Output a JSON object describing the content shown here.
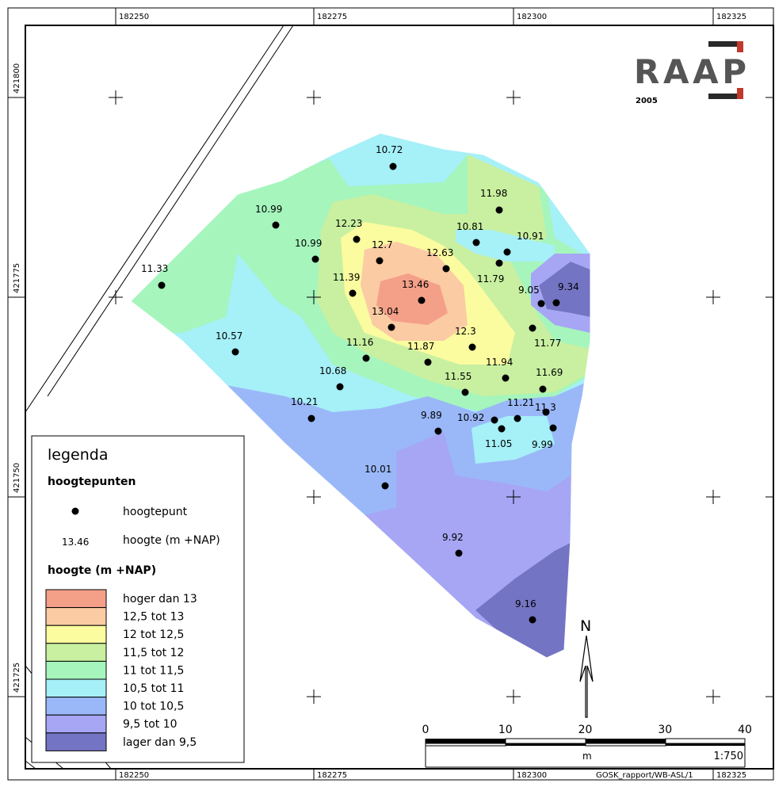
{
  "map": {
    "grid_top": [
      "182250",
      "182275",
      "182300",
      "182325"
    ],
    "grid_bottom": [
      "182250",
      "182275",
      "182300",
      "182325"
    ],
    "grid_left": [
      "421800",
      "421775",
      "421750",
      "421725"
    ],
    "reference": "GOSK_rapport/WB-ASL/1"
  },
  "logo": {
    "text": "RAAP",
    "year": "2005",
    "colors": {
      "dark": "#2a2a2a",
      "red": "#c0392b",
      "gray": "#555555"
    }
  },
  "points": [
    {
      "label": "10.72"
    },
    {
      "label": "11.98"
    },
    {
      "label": "10.99"
    },
    {
      "label": "12.23"
    },
    {
      "label": "10.81"
    },
    {
      "label": "10.91"
    },
    {
      "label": "10.99"
    },
    {
      "label": "12.7"
    },
    {
      "label": "12.63"
    },
    {
      "label": "11.33"
    },
    {
      "label": "11.79"
    },
    {
      "label": "11.39"
    },
    {
      "label": "13.46"
    },
    {
      "label": "9.05"
    },
    {
      "label": "9.34"
    },
    {
      "label": "13.04"
    },
    {
      "label": "10.57"
    },
    {
      "label": "11.77"
    },
    {
      "label": "11.16"
    },
    {
      "label": "11.87"
    },
    {
      "label": "12.3"
    },
    {
      "label": "11.94"
    },
    {
      "label": "11.69"
    },
    {
      "label": "10.68"
    },
    {
      "label": "11.55"
    },
    {
      "label": "10.21"
    },
    {
      "label": "11.21"
    },
    {
      "label": "11.3"
    },
    {
      "label": "9.89"
    },
    {
      "label": "10.92"
    },
    {
      "label": "9.99"
    },
    {
      "label": "11.05"
    },
    {
      "label": "10.01"
    },
    {
      "label": "9.92"
    },
    {
      "label": "9.16"
    }
  ],
  "legend": {
    "title": "legenda",
    "section_points": "hoogtepunten",
    "point_label": "hoogtepunt",
    "height_sample": "13.46",
    "height_label": "hoogte (m +NAP)",
    "section_classes": "hoogte (m +NAP)",
    "classes": [
      {
        "label": "hoger dan 13",
        "color": "#f4a089"
      },
      {
        "label": "12,5 tot 13",
        "color": "#fbcba4"
      },
      {
        "label": "12 tot 12,5",
        "color": "#fbfb9f"
      },
      {
        "label": "11,5 tot 12",
        "color": "#c8f0a0"
      },
      {
        "label": "11 tot 11,5",
        "color": "#a5f5bd"
      },
      {
        "label": "10,5 tot 11",
        "color": "#a6f0f8"
      },
      {
        "label": "10 tot 10,5",
        "color": "#9ab8f8"
      },
      {
        "label": "9,5 tot 10",
        "color": "#a6a6f5"
      },
      {
        "label": "lager dan 9,5",
        "color": "#7474c4"
      }
    ]
  },
  "scalebar": {
    "ticks": [
      "0",
      "10",
      "20",
      "30",
      "40"
    ],
    "unit": "m",
    "ratio": "1:750"
  },
  "north": {
    "label": "N"
  }
}
